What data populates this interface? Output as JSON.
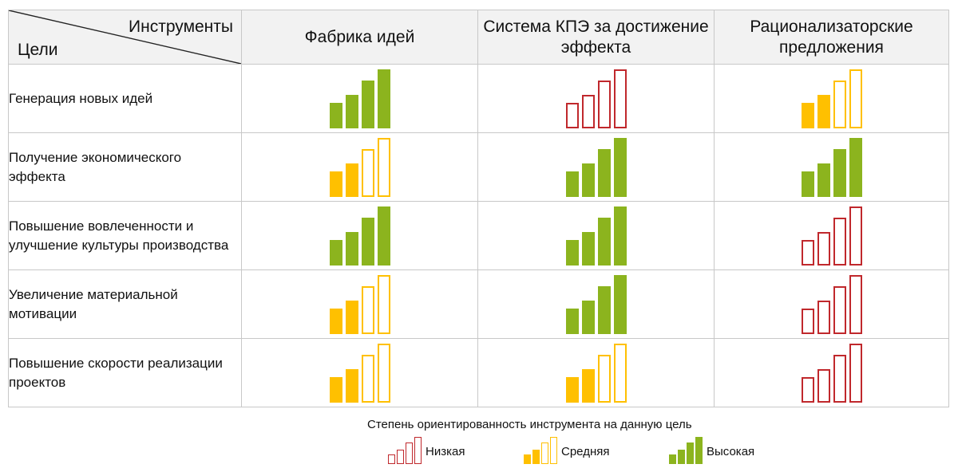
{
  "header": {
    "tools_label": "Инструменты",
    "goals_label": "Цели",
    "columns": [
      {
        "label": "Фабрика идей"
      },
      {
        "label": "Система КПЭ за достижение эффекта"
      },
      {
        "label": "Рационализаторские предложения"
      }
    ]
  },
  "levels": {
    "low": {
      "label": "Низкая",
      "color": "#c0282c",
      "filled_bars": 0
    },
    "medium": {
      "label": "Средняя",
      "color": "#ffc000",
      "filled_bars": 2
    },
    "high": {
      "label": "Высокая",
      "color": "#8cb41e",
      "filled_bars": 4
    }
  },
  "rows": [
    {
      "goal": "Генерация новых идей",
      "ratings": [
        "high",
        "low",
        "medium"
      ]
    },
    {
      "goal": "Получение экономического эффекта",
      "ratings": [
        "medium",
        "high",
        "high"
      ]
    },
    {
      "goal": "Повышение вовлеченности и улучшение культуры производства",
      "ratings": [
        "high",
        "high",
        "low"
      ]
    },
    {
      "goal": "Увеличение материальной мотивации",
      "ratings": [
        "medium",
        "high",
        "low"
      ]
    },
    {
      "goal": "Повышение скорости реализации проектов",
      "ratings": [
        "medium",
        "medium",
        "low"
      ]
    }
  ],
  "legend": {
    "title": "Степень ориентированность инструмента на данную цель",
    "items": [
      {
        "level": "low",
        "label": "Низкая"
      },
      {
        "level": "medium",
        "label": "Средняя"
      },
      {
        "level": "high",
        "label": "Высокая"
      }
    ]
  }
}
